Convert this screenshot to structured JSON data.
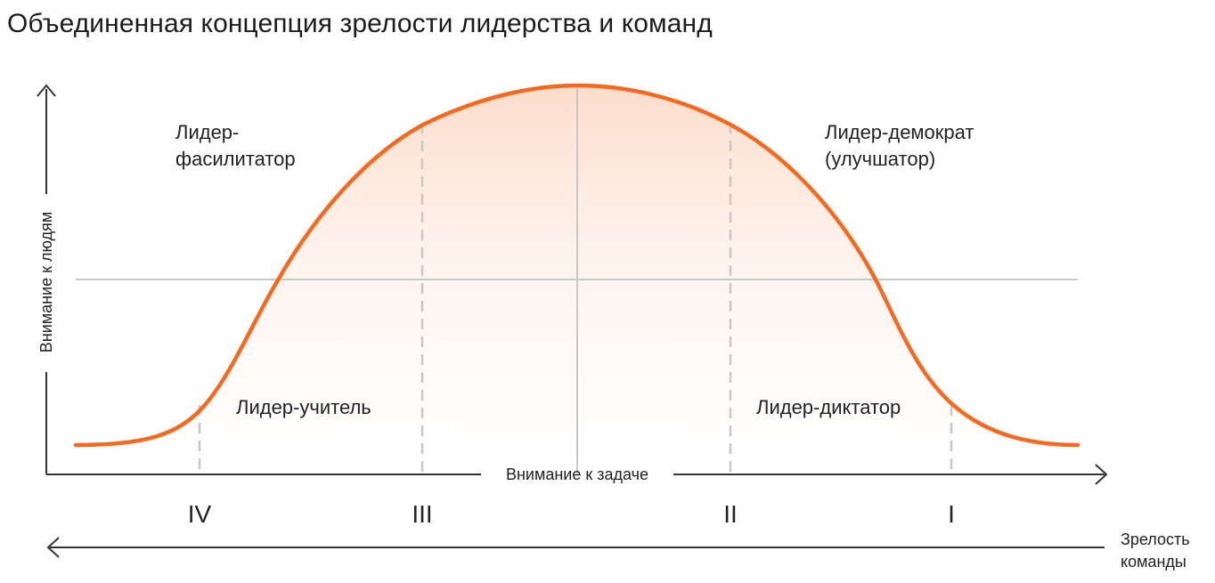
{
  "title": "Объединенная концепция зрелости лидерства и команд",
  "axes": {
    "y_label": "Внимание к людям",
    "x_label": "Внимание к задаче",
    "bottom_label_line1": "Зрелость",
    "bottom_label_line2": "команды"
  },
  "styles": [
    {
      "line1": "Лидер-",
      "line2": "фасилитатор"
    },
    {
      "line1": "Лидер-демократ",
      "line2": "(улучшатор)"
    },
    {
      "line1": "Лидер-учитель",
      "line2": ""
    },
    {
      "line1": "Лидер-диктатор",
      "line2": ""
    }
  ],
  "stages": [
    "IV",
    "III",
    "II",
    "I"
  ],
  "colors": {
    "curve": "#f7691f",
    "fill": "#fde3d5",
    "grid": "#c8c8c8",
    "axis": "#333333"
  }
}
